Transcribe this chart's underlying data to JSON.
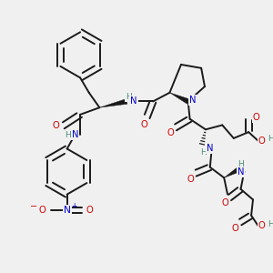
{
  "background_color": "#f0f0f0",
  "figsize": [
    3.0,
    3.0
  ],
  "dpi": 100,
  "bond_color": "#1a1a1a",
  "bond_width": 1.4,
  "atom_colors": {
    "N": "#0000cc",
    "O": "#cc0000",
    "H": "#4a8f7a",
    "C": "#1a1a1a"
  },
  "fs": 7.2
}
